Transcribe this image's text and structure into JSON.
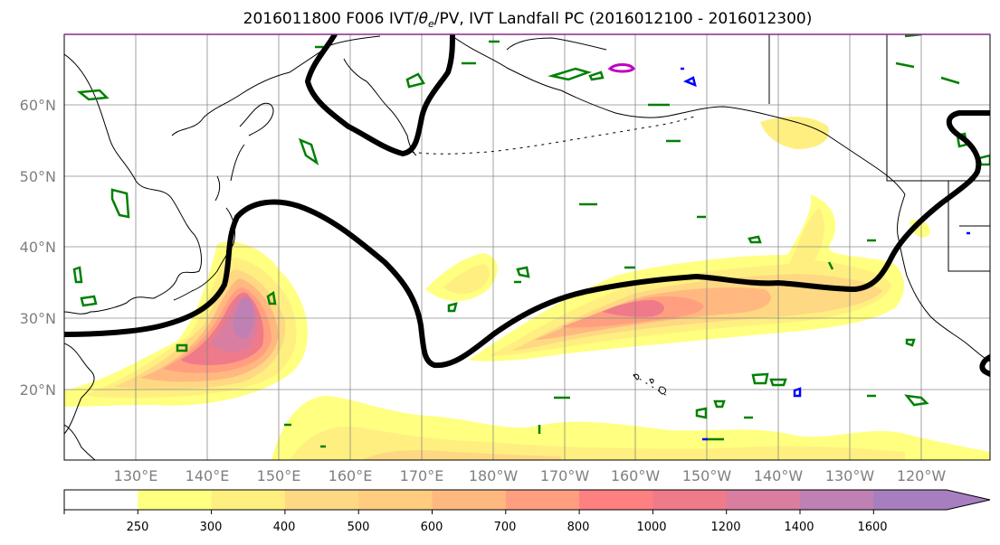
{
  "title_prefix": "2016011800 F006 IVT/",
  "title_theta": "θ",
  "title_sub": "e",
  "title_suffix": "/PV, IVT Landfall PC (2016012100 - 2016012300)",
  "lat_labels": [
    "20°N",
    "30°N",
    "40°N",
    "50°N",
    "60°N"
  ],
  "lon_labels": [
    "130°E",
    "140°E",
    "150°E",
    "160°E",
    "170°E",
    "180°W",
    "170°W",
    "160°W",
    "150°W",
    "140°W",
    "130°W",
    "120°W"
  ],
  "colorbar": {
    "ticks": [
      "250",
      "300",
      "400",
      "500",
      "600",
      "700",
      "800",
      "1000",
      "1200",
      "1400",
      "1600"
    ],
    "colors": [
      "#ffffff",
      "#ffff80",
      "#ffef80",
      "#ffd883",
      "#ffcc80",
      "#ffb980",
      "#ff9f80",
      "#ff8080",
      "#ef7a8a",
      "#d97ea0",
      "#bf80b4",
      "#a77ec0"
    ]
  },
  "colors": {
    "pv_contour": "#008000",
    "theta_contour": "#000000",
    "blue_contour": "#0000ff",
    "magenta_contour": "#c000c0"
  }
}
